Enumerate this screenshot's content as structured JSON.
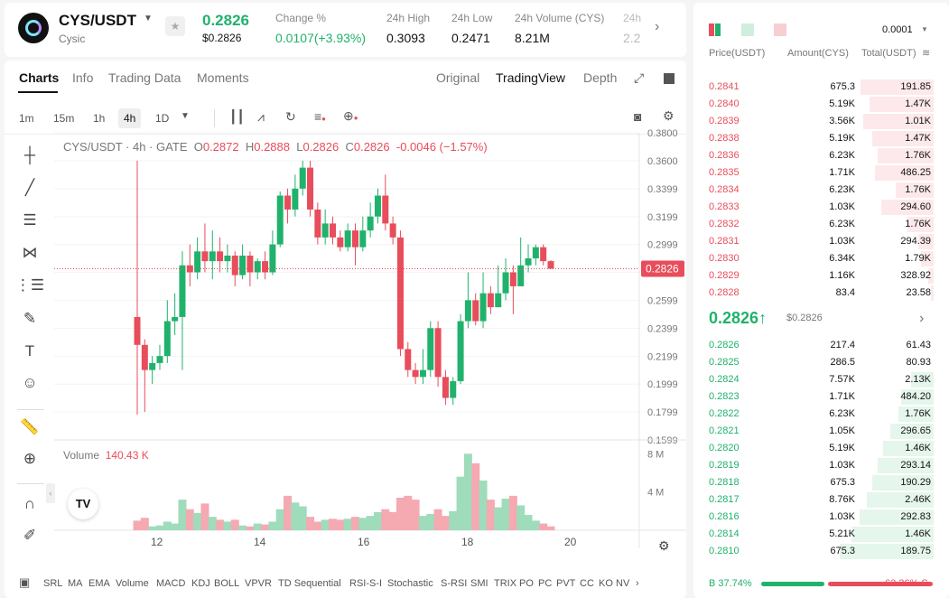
{
  "header": {
    "pair": "CYS/USDT",
    "project": "Cysic",
    "last_price": "0.2826",
    "last_price_usd": "$0.2826",
    "stats": [
      {
        "label": "Change %",
        "value": "0.0107(+3.93%)",
        "color": "#20b26c"
      },
      {
        "label": "24h High",
        "value": "0.3093"
      },
      {
        "label": "24h Low",
        "value": "0.2471"
      },
      {
        "label": "24h Volume (CYS)",
        "value": "8.21M"
      },
      {
        "label": "24h",
        "value": "2.2"
      }
    ]
  },
  "tabs": {
    "left": [
      "Charts",
      "Info",
      "Trading Data",
      "Moments"
    ],
    "right": [
      "Original",
      "TradingView",
      "Depth"
    ],
    "active_left": "Charts",
    "active_right": "TradingView"
  },
  "timeframes": [
    "1m",
    "15m",
    "1h",
    "4h",
    "1D"
  ],
  "active_timeframe": "4h",
  "chart": {
    "legend_title": "CYS/USDT · 4h · GATE",
    "o": "0.2872",
    "h": "0.2888",
    "l": "0.2826",
    "c": "0.2826",
    "chg": "-0.0046 (−1.57%)",
    "current_label": "0.2826",
    "volume_label": "Volume",
    "volume_value": "140.43 K"
  },
  "chart_data": {
    "type": "candlestick",
    "title": "CYS/USDT · 4h · GATE",
    "y_ticks": [
      "0.3800",
      "0.3600",
      "0.3399",
      "0.3199",
      "0.2999",
      "0.2799",
      "0.2599",
      "0.2399",
      "0.2199",
      "0.1999",
      "0.1799",
      "0.1599"
    ],
    "x_ticks": [
      "12",
      "14",
      "16",
      "18",
      "20"
    ],
    "volume_ticks": [
      "8 M",
      "4 M"
    ],
    "ylim": [
      0.1599,
      0.38
    ],
    "candles": [
      [
        0.248,
        0.228,
        0.36,
        0.178
      ],
      [
        0.228,
        0.21,
        0.232,
        0.18
      ],
      [
        0.21,
        0.215,
        0.22,
        0.2
      ],
      [
        0.215,
        0.22,
        0.228,
        0.21
      ],
      [
        0.22,
        0.245,
        0.26,
        0.215
      ],
      [
        0.245,
        0.248,
        0.265,
        0.235
      ],
      [
        0.248,
        0.285,
        0.295,
        0.21
      ],
      [
        0.285,
        0.28,
        0.3,
        0.27
      ],
      [
        0.28,
        0.295,
        0.305,
        0.275
      ],
      [
        0.295,
        0.288,
        0.315,
        0.28
      ],
      [
        0.288,
        0.295,
        0.31,
        0.275
      ],
      [
        0.295,
        0.288,
        0.305,
        0.28
      ],
      [
        0.288,
        0.292,
        0.3,
        0.28
      ],
      [
        0.292,
        0.278,
        0.295,
        0.27
      ],
      [
        0.278,
        0.292,
        0.3,
        0.275
      ],
      [
        0.292,
        0.28,
        0.295,
        0.27
      ],
      [
        0.28,
        0.288,
        0.29,
        0.275
      ],
      [
        0.288,
        0.28,
        0.295,
        0.275
      ],
      [
        0.28,
        0.3,
        0.31,
        0.278
      ],
      [
        0.3,
        0.335,
        0.338,
        0.298
      ],
      [
        0.335,
        0.325,
        0.34,
        0.315
      ],
      [
        0.325,
        0.34,
        0.35,
        0.32
      ],
      [
        0.34,
        0.355,
        0.36,
        0.335
      ],
      [
        0.355,
        0.325,
        0.36,
        0.32
      ],
      [
        0.325,
        0.305,
        0.33,
        0.3
      ],
      [
        0.305,
        0.315,
        0.325,
        0.3
      ],
      [
        0.315,
        0.305,
        0.32,
        0.3
      ],
      [
        0.305,
        0.298,
        0.31,
        0.295
      ],
      [
        0.298,
        0.31,
        0.315,
        0.295
      ],
      [
        0.31,
        0.298,
        0.315,
        0.285
      ],
      [
        0.298,
        0.31,
        0.32,
        0.295
      ],
      [
        0.31,
        0.32,
        0.33,
        0.305
      ],
      [
        0.32,
        0.335,
        0.34,
        0.315
      ],
      [
        0.335,
        0.315,
        0.35,
        0.31
      ],
      [
        0.315,
        0.305,
        0.32,
        0.3
      ],
      [
        0.305,
        0.225,
        0.31,
        0.22
      ],
      [
        0.225,
        0.21,
        0.23,
        0.205
      ],
      [
        0.21,
        0.205,
        0.215,
        0.2
      ],
      [
        0.205,
        0.21,
        0.225,
        0.2
      ],
      [
        0.21,
        0.24,
        0.245,
        0.205
      ],
      [
        0.24,
        0.205,
        0.245,
        0.198
      ],
      [
        0.205,
        0.19,
        0.21,
        0.185
      ],
      [
        0.19,
        0.202,
        0.205,
        0.185
      ],
      [
        0.202,
        0.245,
        0.25,
        0.2
      ],
      [
        0.245,
        0.26,
        0.28,
        0.24
      ],
      [
        0.26,
        0.245,
        0.265,
        0.242
      ],
      [
        0.245,
        0.265,
        0.28,
        0.24
      ],
      [
        0.265,
        0.255,
        0.27,
        0.25
      ],
      [
        0.255,
        0.265,
        0.285,
        0.255
      ],
      [
        0.265,
        0.28,
        0.29,
        0.26
      ],
      [
        0.28,
        0.27,
        0.285,
        0.25
      ],
      [
        0.27,
        0.285,
        0.305,
        0.27
      ],
      [
        0.285,
        0.29,
        0.3,
        0.28
      ],
      [
        0.29,
        0.298,
        0.3,
        0.285
      ],
      [
        0.298,
        0.288,
        0.3,
        0.285
      ],
      [
        0.288,
        0.2826,
        0.2888,
        0.2826
      ]
    ],
    "volumes": [
      1.0,
      1.3,
      0.4,
      0.5,
      0.9,
      0.7,
      3.2,
      2.2,
      1.8,
      2.8,
      1.4,
      1.1,
      0.9,
      1.1,
      0.5,
      0.4,
      0.7,
      0.6,
      0.9,
      2.2,
      3.6,
      2.9,
      2.5,
      1.4,
      0.9,
      1.1,
      1.2,
      1.1,
      1.2,
      1.4,
      1.3,
      1.5,
      1.9,
      2.2,
      1.9,
      3.4,
      3.6,
      3.2,
      1.5,
      1.7,
      2.2,
      1.5,
      2.0,
      5.6,
      8.0,
      7.0,
      5.2,
      3.2,
      2.4,
      3.3,
      3.6,
      2.6,
      1.6,
      1.0,
      0.7,
      0.4
    ]
  },
  "indicators": [
    "SRL",
    "MA",
    "EMA",
    "Volume",
    "MACD",
    "KDJ",
    "BOLL",
    "VPVR",
    "TD Sequential",
    "RSI-S-I",
    "Stochastic",
    "S-RSI",
    "SMI",
    "TRIX",
    "PO",
    "PC",
    "PVT",
    "CC",
    "KO",
    "NV"
  ],
  "orderbook": {
    "precision": "0.0001",
    "headers": {
      "price": "Price(USDT)",
      "amount": "Amount(CYS)",
      "total": "Total(USDT)"
    },
    "asks": [
      {
        "price": "0.2841",
        "amount": "675.3",
        "total": "191.85",
        "depth": 0.62
      },
      {
        "price": "0.2840",
        "amount": "5.19K",
        "total": "1.47K",
        "depth": 0.55
      },
      {
        "price": "0.2839",
        "amount": "3.56K",
        "total": "1.01K",
        "depth": 0.6
      },
      {
        "price": "0.2838",
        "amount": "5.19K",
        "total": "1.47K",
        "depth": 0.52
      },
      {
        "price": "0.2836",
        "amount": "6.23K",
        "total": "1.76K",
        "depth": 0.48
      },
      {
        "price": "0.2835",
        "amount": "1.71K",
        "total": "486.25",
        "depth": 0.5
      },
      {
        "price": "0.2834",
        "amount": "6.23K",
        "total": "1.76K",
        "depth": 0.32
      },
      {
        "price": "0.2833",
        "amount": "1.03K",
        "total": "294.60",
        "depth": 0.45
      },
      {
        "price": "0.2832",
        "amount": "6.23K",
        "total": "1.76K",
        "depth": 0.22
      },
      {
        "price": "0.2831",
        "amount": "1.03K",
        "total": "294.39",
        "depth": 0.13
      },
      {
        "price": "0.2830",
        "amount": "6.34K",
        "total": "1.79K",
        "depth": 0.11
      },
      {
        "price": "0.2829",
        "amount": "1.16K",
        "total": "328.92",
        "depth": 0.05
      },
      {
        "price": "0.2828",
        "amount": "83.4",
        "total": "23.58",
        "depth": 0.02
      }
    ],
    "mid_price": "0.2826",
    "mid_arrow": "↑",
    "mid_usd": "$0.2826",
    "bids": [
      {
        "price": "0.2826",
        "amount": "217.4",
        "total": "61.43",
        "depth": 0.0
      },
      {
        "price": "0.2825",
        "amount": "286.5",
        "total": "80.93",
        "depth": 0.0
      },
      {
        "price": "0.2824",
        "amount": "7.57K",
        "total": "2.13K",
        "depth": 0.19
      },
      {
        "price": "0.2823",
        "amount": "1.71K",
        "total": "484.20",
        "depth": 0.28
      },
      {
        "price": "0.2822",
        "amount": "6.23K",
        "total": "1.76K",
        "depth": 0.3
      },
      {
        "price": "0.2821",
        "amount": "1.05K",
        "total": "296.65",
        "depth": 0.37
      },
      {
        "price": "0.2820",
        "amount": "5.19K",
        "total": "1.46K",
        "depth": 0.43
      },
      {
        "price": "0.2819",
        "amount": "1.03K",
        "total": "293.14",
        "depth": 0.48
      },
      {
        "price": "0.2818",
        "amount": "675.3",
        "total": "190.29",
        "depth": 0.52
      },
      {
        "price": "0.2817",
        "amount": "8.76K",
        "total": "2.46K",
        "depth": 0.57
      },
      {
        "price": "0.2816",
        "amount": "1.03K",
        "total": "292.83",
        "depth": 0.63
      },
      {
        "price": "0.2814",
        "amount": "5.21K",
        "total": "1.46K",
        "depth": 0.7
      },
      {
        "price": "0.2810",
        "amount": "675.3",
        "total": "189.75",
        "depth": 0.8
      }
    ],
    "buy_label": "B 37.74%",
    "sell_label": "62.26% S",
    "buy_ratio": 0.3774
  },
  "colors": {
    "up": "#20b26c",
    "down": "#e84d5b"
  }
}
